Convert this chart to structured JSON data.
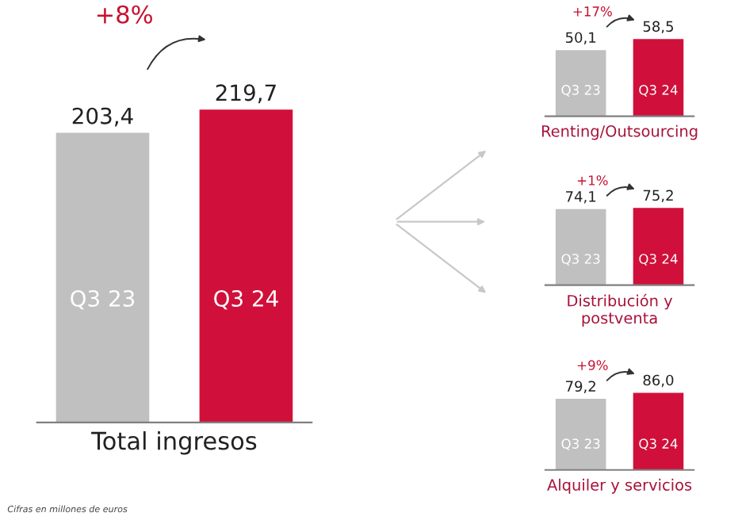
{
  "chart_data": [
    {
      "type": "bar",
      "xlabel": "Total ingresos",
      "categories": [
        "Q3 23",
        "Q3 24"
      ],
      "values": [
        203.4,
        219.7
      ],
      "colors": [
        "#c0c0c0",
        "#d0103a"
      ],
      "value_labels": [
        "203,4",
        "219,7"
      ],
      "annotations": [
        "+8%",
        "Cifras en millones de euros"
      ]
    },
    {
      "type": "bar",
      "xlabel": "Renting/Outsourcing",
      "categories": [
        "Q3 23",
        "Q3 24"
      ],
      "values": [
        50.1,
        58.5
      ],
      "colors": [
        "#c0c0c0",
        "#d0103a"
      ],
      "value_labels": [
        "50,1",
        "58,5"
      ],
      "annotations": [
        "+17%"
      ]
    },
    {
      "type": "bar",
      "xlabel": "Distribución y\npostventa",
      "categories": [
        "Q3 23",
        "Q3 24"
      ],
      "values": [
        74.1,
        75.2
      ],
      "colors": [
        "#c0c0c0",
        "#d0103a"
      ],
      "value_labels": [
        "74,1",
        "75,2"
      ],
      "annotations": [
        "+1%"
      ]
    },
    {
      "type": "bar",
      "xlabel": "Alquiler y servicios",
      "categories": [
        "Q3 23",
        "Q3 24"
      ],
      "values": [
        79.2,
        86.0
      ],
      "colors": [
        "#c0c0c0",
        "#d0103a"
      ],
      "value_labels": [
        "79,2",
        "86,0"
      ],
      "annotations": [
        "+9%"
      ]
    }
  ]
}
